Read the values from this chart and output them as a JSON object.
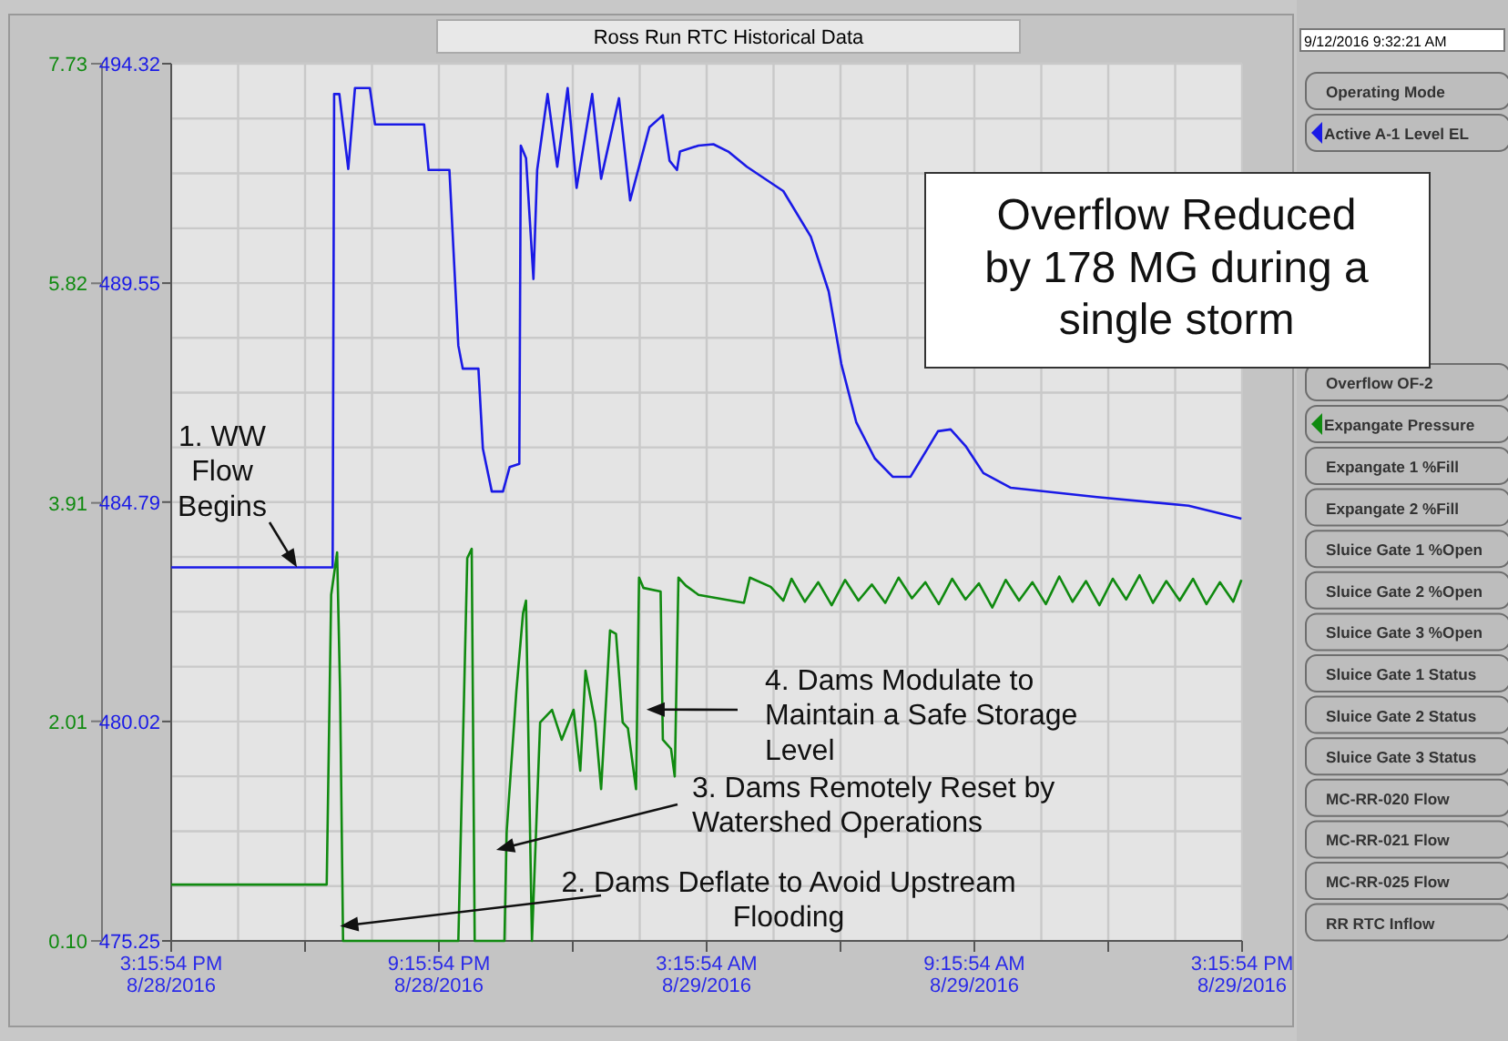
{
  "chart_data": {
    "type": "line",
    "title": "Ross Run RTC Historical Data",
    "xlim": [
      "2016-08-28T15:15:54",
      "2016-08-29T15:15:54"
    ],
    "xticks": [
      {
        "value": "2016-08-28T15:15:54",
        "label": "3:15:54 PM 8/28/2016"
      },
      {
        "value": "2016-08-28T18:15:54",
        "label": null
      },
      {
        "value": "2016-08-28T21:15:54",
        "label": "9:15:54 PM 8/28/2016"
      },
      {
        "value": "2016-08-29T00:15:54",
        "label": null
      },
      {
        "value": "2016-08-29T03:15:54",
        "label": "3:15:54 AM 8/29/2016"
      },
      {
        "value": "2016-08-29T06:15:54",
        "label": null
      },
      {
        "value": "2016-08-29T09:15:54",
        "label": "9:15:54 AM 8/29/2016"
      },
      {
        "value": "2016-08-29T12:15:54",
        "label": null
      },
      {
        "value": "2016-08-29T15:15:54",
        "label": "3:15:54 PM 8/29/2016"
      }
    ],
    "ylim": [
      475.25,
      494.32
    ],
    "yticks": [
      475.25,
      480.02,
      484.79,
      489.55,
      494.32
    ],
    "y2lim": [
      0.1,
      7.73
    ],
    "y2ticks": [
      {
        "value": 0.1,
        "label": "0.10"
      },
      2.01,
      3.91,
      5.82,
      7.73
    ],
    "grid": true,
    "legend": "right",
    "marker": "none",
    "line_style": "solid",
    "series": [
      {
        "name": "Active A-1 Level EL",
        "color": "#1a1ae6",
        "x": [
          "2016-08-28T15:16",
          "2016-08-28T18:47",
          "2016-08-28T18:53",
          "2016-08-28T18:55",
          "2016-08-28T19:02",
          "2016-08-28T19:14",
          "2016-08-28T19:23",
          "2016-08-28T19:43",
          "2016-08-28T19:50",
          "2016-08-28T20:56",
          "2016-08-28T21:02",
          "2016-08-28T21:30",
          "2016-08-28T21:42",
          "2016-08-28T21:48",
          "2016-08-28T22:09",
          "2016-08-28T22:15",
          "2016-08-28T22:27",
          "2016-08-28T22:42",
          "2016-08-28T22:51",
          "2016-08-28T23:04",
          "2016-08-28T23:06",
          "2016-08-28T23:13",
          "2016-08-28T23:23",
          "2016-08-28T23:28",
          "2016-08-28T23:42",
          "2016-08-28T23:55",
          "2016-08-29T00:09",
          "2016-08-29T00:21",
          "2016-08-29T00:42",
          "2016-08-29T00:54",
          "2016-08-29T01:18",
          "2016-08-29T01:33",
          "2016-08-29T01:59",
          "2016-08-29T02:17",
          "2016-08-29T02:26",
          "2016-08-29T02:36",
          "2016-08-29T02:40",
          "2016-08-29T03:05",
          "2016-08-29T03:25",
          "2016-08-29T03:45",
          "2016-08-29T04:10",
          "2016-08-29T04:59",
          "2016-08-29T05:36",
          "2016-08-29T06:00",
          "2016-08-29T06:17",
          "2016-08-29T06:37",
          "2016-08-29T07:02",
          "2016-08-29T07:26",
          "2016-08-29T07:50",
          "2016-08-29T08:08",
          "2016-08-29T08:27",
          "2016-08-29T08:44",
          "2016-08-29T09:04",
          "2016-08-29T09:28",
          "2016-08-29T10:05",
          "2016-08-29T12:01",
          "2016-08-29T14:04",
          "2016-08-29T15:15"
        ],
        "values": [
          483.37,
          483.37,
          483.37,
          493.66,
          493.66,
          492.03,
          493.79,
          493.79,
          493.0,
          493.0,
          492.01,
          492.01,
          488.19,
          487.69,
          487.69,
          485.95,
          485.02,
          485.02,
          485.55,
          485.62,
          492.54,
          492.27,
          489.64,
          492.01,
          493.66,
          492.08,
          493.79,
          491.62,
          493.66,
          491.82,
          493.57,
          491.35,
          492.94,
          493.2,
          492.21,
          492.01,
          492.41,
          492.54,
          492.57,
          492.41,
          492.08,
          491.55,
          490.56,
          489.37,
          487.79,
          486.53,
          485.74,
          485.34,
          485.34,
          485.82,
          486.33,
          486.37,
          486.01,
          485.42,
          485.1,
          484.9,
          484.71,
          484.43
        ]
      },
      {
        "name": "Expangate Pressure",
        "color": "#108a10",
        "axis": "y2",
        "x": [
          "2016-08-28T15:16",
          "2016-08-28T18:45",
          "2016-08-28T18:51",
          "2016-08-28T18:59",
          "2016-08-28T19:03",
          "2016-08-28T19:07",
          "2016-08-28T21:42",
          "2016-08-28T21:54",
          "2016-08-28T22:00",
          "2016-08-28T22:04",
          "2016-08-28T22:44",
          "2016-08-28T22:47",
          "2016-08-28T23:00",
          "2016-08-28T23:09",
          "2016-08-28T23:13",
          "2016-08-28T23:21",
          "2016-08-28T23:32",
          "2016-08-28T23:48",
          "2016-08-29T00:01",
          "2016-08-29T00:17",
          "2016-08-29T00:26",
          "2016-08-29T00:33",
          "2016-08-29T00:46",
          "2016-08-29T00:54",
          "2016-08-29T01:06",
          "2016-08-29T01:14",
          "2016-08-29T01:23",
          "2016-08-29T01:30",
          "2016-08-29T01:41",
          "2016-08-29T01:45",
          "2016-08-29T01:51",
          "2016-08-29T02:14",
          "2016-08-29T02:17",
          "2016-08-29T02:28",
          "2016-08-29T02:33",
          "2016-08-29T02:38",
          "2016-08-29T02:48",
          "2016-08-29T03:05",
          "2016-08-29T04:06",
          "2016-08-29T04:14",
          "2016-08-29T04:42",
          "2016-08-29T04:59",
          "2016-08-29T05:10",
          "2016-08-29T05:28",
          "2016-08-29T05:46",
          "2016-08-29T06:04",
          "2016-08-29T06:22",
          "2016-08-29T06:40",
          "2016-08-29T06:58",
          "2016-08-29T07:16",
          "2016-08-29T07:34",
          "2016-08-29T07:52",
          "2016-08-29T08:10",
          "2016-08-29T08:28",
          "2016-08-29T08:46",
          "2016-08-29T09:04",
          "2016-08-29T09:22",
          "2016-08-29T09:40",
          "2016-08-29T09:58",
          "2016-08-29T10:16",
          "2016-08-29T10:34",
          "2016-08-29T10:52",
          "2016-08-29T11:10",
          "2016-08-29T11:28",
          "2016-08-29T11:46",
          "2016-08-29T12:04",
          "2016-08-29T12:22",
          "2016-08-29T12:40",
          "2016-08-29T12:58",
          "2016-08-29T13:16",
          "2016-08-29T13:34",
          "2016-08-29T13:52",
          "2016-08-29T14:10",
          "2016-08-29T14:28",
          "2016-08-29T14:46",
          "2016-08-29T15:04",
          "2016-08-29T15:15"
        ],
        "values": [
          0.59,
          0.59,
          3.11,
          3.48,
          2.27,
          0.1,
          0.1,
          3.43,
          3.51,
          0.1,
          0.1,
          1.05,
          2.27,
          2.95,
          3.06,
          0.1,
          2.0,
          2.11,
          1.85,
          2.11,
          1.58,
          2.45,
          2.0,
          1.42,
          2.8,
          2.77,
          2.0,
          1.95,
          1.42,
          3.26,
          3.17,
          3.14,
          1.85,
          1.77,
          1.53,
          3.26,
          3.19,
          3.11,
          3.04,
          3.26,
          3.18,
          3.06,
          3.25,
          3.05,
          3.22,
          3.02,
          3.24,
          3.06,
          3.2,
          3.04,
          3.26,
          3.08,
          3.22,
          3.03,
          3.25,
          3.07,
          3.21,
          3.0,
          3.24,
          3.06,
          3.22,
          3.03,
          3.27,
          3.05,
          3.23,
          3.02,
          3.25,
          3.07,
          3.28,
          3.04,
          3.23,
          3.06,
          3.25,
          3.03,
          3.22,
          3.05,
          3.24
        ]
      }
    ],
    "annotations": [
      {
        "text": "1. WW Flow Begins",
        "x": "2016-08-28T18:05",
        "y": 483.37
      },
      {
        "text": "2. Dams Deflate to Avoid Upstream Flooding",
        "x": "2016-08-28T19:03",
        "y": 475.57
      },
      {
        "text": "3. Dams Remotely Reset by Watershed Operations",
        "x": "2016-08-28T22:33",
        "y": 477.23
      },
      {
        "text": "4. Dams Modulate to Maintain a Safe Storage Level",
        "x": "2016-08-29T01:55",
        "y": 480.28
      },
      "Overflow Reduced by 178 MG during a single storm",
      "9/12/2016 9:32:21 AM",
      "Operating Mode",
      "Overflow OF-2",
      "Expangate 1 %Fill",
      "Expangate 2 %Fill",
      "Sluice Gate 1 %Open",
      "Sluice Gate 2 %Open",
      "Sluice Gate 3 %Open",
      "Sluice Gate 1 Status",
      "Sluice Gate 2 Status",
      "Sluice Gate 3 Status",
      "MC-RR-020 Flow",
      "MC-RR-021 Flow",
      "MC-RR-025 Flow",
      "RR RTC Inflow"
    ]
  }
}
